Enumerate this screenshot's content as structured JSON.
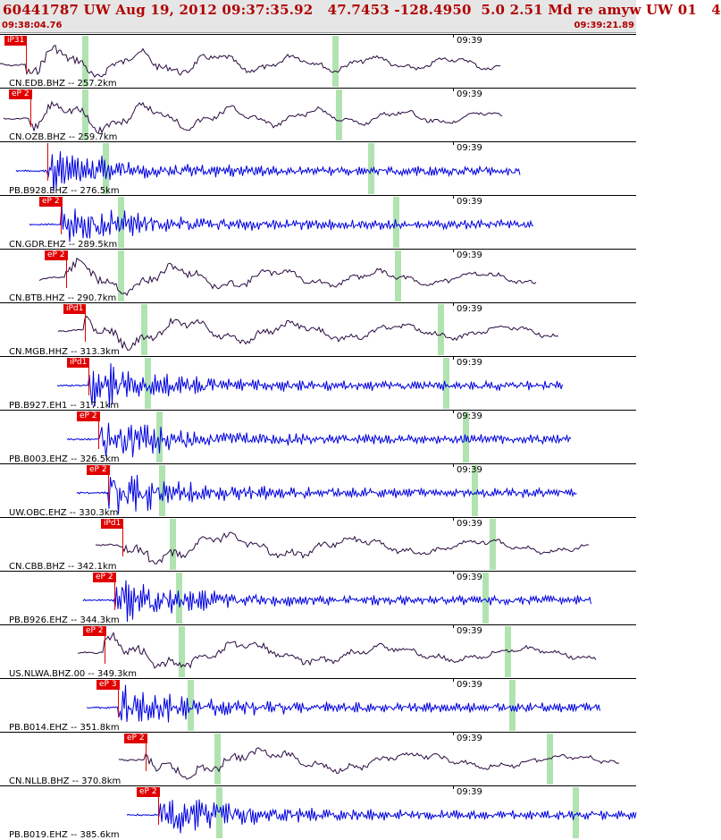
{
  "header": {
    "title": "60441787 UW Aug 19, 2012 09:37:35.92   47.7453 -128.4950  5.0 2.51 Md re amyw UW 01   4",
    "time_start": "09:38:04.76",
    "time_end": "09:39:21.89"
  },
  "colors": {
    "header_text": "#b00000",
    "pick": "#e00000",
    "broadband": "#2a0a40",
    "short_period": "#0000e0",
    "window": "#a8e0a8"
  },
  "time_marker_label": "09:39",
  "traces": [
    {
      "label": "CN.EDB.BHZ -- 257.2km",
      "pick": "iP31",
      "kind": "broadband",
      "pick_t": 0.041,
      "marker_t": 0.5
    },
    {
      "label": "CN.OZB.BHZ -- 259.7km",
      "pick": "eP 2",
      "kind": "broadband",
      "pick_t": 0.048,
      "marker_t": 0.5
    },
    {
      "label": "PB.B928.EHZ -- 276.5km",
      "pick": "",
      "kind": "short_period",
      "pick_t": 0.075,
      "marker_t": 0.5
    },
    {
      "label": "CN.GDR.EHZ -- 289.5km",
      "pick": "eP 2",
      "kind": "short_period",
      "pick_t": 0.096,
      "marker_t": 0.5
    },
    {
      "label": "CN.BTB.HHZ -- 290.7km",
      "pick": "eP 2",
      "kind": "broadband",
      "pick_t": 0.104,
      "marker_t": 0.5
    },
    {
      "label": "CN.MGB.HHZ -- 313.3km",
      "pick": "iPd1",
      "kind": "broadband",
      "pick_t": 0.133,
      "marker_t": 0.5
    },
    {
      "label": "PB.B927.EH1 -- 317.1km",
      "pick": "iPd1",
      "kind": "short_period",
      "pick_t": 0.139,
      "marker_t": 0.5
    },
    {
      "label": "PB.B003.EHZ -- 326.5km",
      "pick": "eP 2",
      "kind": "short_period",
      "pick_t": 0.155,
      "marker_t": 0.5
    },
    {
      "label": "UW.OBC.EHZ -- 330.3km",
      "pick": "eP 2",
      "kind": "short_period",
      "pick_t": 0.17,
      "marker_t": 0.5
    },
    {
      "label": "CN.CBB.BHZ -- 342.1km",
      "pick": "iPd1",
      "kind": "broadband",
      "pick_t": 0.192,
      "marker_t": 0.5
    },
    {
      "label": "PB.B926.EHZ -- 344.3km",
      "pick": "eP 2",
      "kind": "short_period",
      "pick_t": 0.18,
      "marker_t": 0.5
    },
    {
      "label": "US.NLWA.BHZ.00 -- 349.3km",
      "pick": "eP 2",
      "kind": "broadband",
      "pick_t": 0.165,
      "marker_t": 0.5
    },
    {
      "label": "PB.B014.EHZ -- 351.8km",
      "pick": "eP 3",
      "kind": "short_period",
      "pick_t": 0.186,
      "marker_t": 0.5
    },
    {
      "label": "CN.NLLB.BHZ -- 370.8km",
      "pick": "eP 2",
      "kind": "broadband",
      "pick_t": 0.229,
      "marker_t": 0.5
    },
    {
      "label": "PB.B019.EHZ -- 385.6km",
      "pick": "eP 2",
      "kind": "short_period",
      "pick_t": 0.248,
      "marker_t": 0.5
    }
  ]
}
